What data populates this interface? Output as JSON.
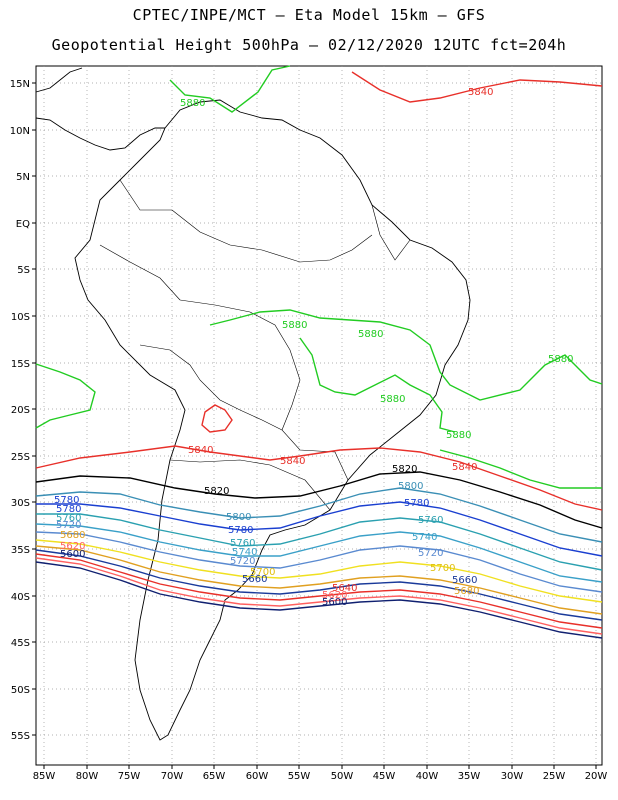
{
  "title_line1": "CPTEC/INPE/MCT –  Eta Model 15km – GFS",
  "title_line2": "Geopotential Height 500hPa – 02/12/2020 12UTC fct=204h",
  "lat_ticks": [
    "15N",
    "10N",
    "5N",
    "EQ",
    "5S",
    "10S",
    "15S",
    "20S",
    "25S",
    "30S",
    "35S",
    "40S",
    "45S",
    "50S",
    "55S"
  ],
  "lon_ticks": [
    "85W",
    "80W",
    "75W",
    "70W",
    "65W",
    "60W",
    "55W",
    "50W",
    "45W",
    "40W",
    "35W",
    "30W",
    "25W",
    "20W"
  ],
  "contour_colors": {
    "5880": "#22cc22",
    "5840": "#e8302a",
    "5820": "#000000",
    "5800": "#3a8fb5",
    "5780": "#1a3fd0",
    "5760": "#2aa0b0",
    "5740": "#3aa0c8",
    "5720": "#5a8ad0",
    "5700": "#f0e020",
    "5680": "#e0a020",
    "5660": "#1a3a9a",
    "5640": "#e8302a",
    "5620": "#ff6060",
    "5600": "#102070"
  },
  "contour_labels": {
    "c5880": "5880",
    "c5840": "5840",
    "c5820": "5820",
    "c5800": "5800",
    "c5780": "5780",
    "c5760": "5760",
    "c5740": "5740",
    "c5720": "5720",
    "c5700": "5700",
    "c5680": "5680",
    "c5660": "5660",
    "c5640": "5640",
    "c5620": "5620",
    "c5600": "5600"
  }
}
